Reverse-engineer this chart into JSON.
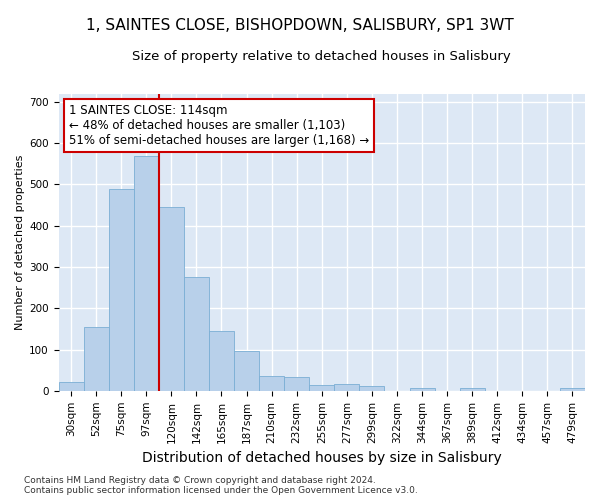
{
  "title": "1, SAINTES CLOSE, BISHOPDOWN, SALISBURY, SP1 3WT",
  "subtitle": "Size of property relative to detached houses in Salisbury",
  "xlabel": "Distribution of detached houses by size in Salisbury",
  "ylabel": "Number of detached properties",
  "categories": [
    "30sqm",
    "52sqm",
    "75sqm",
    "97sqm",
    "120sqm",
    "142sqm",
    "165sqm",
    "187sqm",
    "210sqm",
    "232sqm",
    "255sqm",
    "277sqm",
    "299sqm",
    "322sqm",
    "344sqm",
    "367sqm",
    "389sqm",
    "412sqm",
    "434sqm",
    "457sqm",
    "479sqm"
  ],
  "values": [
    22,
    155,
    490,
    568,
    445,
    275,
    145,
    97,
    35,
    33,
    15,
    16,
    12,
    0,
    8,
    0,
    6,
    0,
    0,
    0,
    7
  ],
  "bar_color": "#b8d0ea",
  "bar_edge_color": "#7aaed4",
  "vline_color": "#cc0000",
  "annotation_text": "1 SAINTES CLOSE: 114sqm\n← 48% of detached houses are smaller (1,103)\n51% of semi-detached houses are larger (1,168) →",
  "annotation_box_color": "white",
  "annotation_box_edge_color": "#cc0000",
  "footnote": "Contains HM Land Registry data © Crown copyright and database right 2024.\nContains public sector information licensed under the Open Government Licence v3.0.",
  "ylim": [
    0,
    720
  ],
  "yticks": [
    0,
    100,
    200,
    300,
    400,
    500,
    600,
    700
  ],
  "bg_color": "#dde8f5",
  "grid_color": "white",
  "title_fontsize": 11,
  "subtitle_fontsize": 9.5,
  "xlabel_fontsize": 10,
  "ylabel_fontsize": 8,
  "tick_fontsize": 7.5,
  "footnote_fontsize": 6.5,
  "annot_fontsize": 8.5
}
